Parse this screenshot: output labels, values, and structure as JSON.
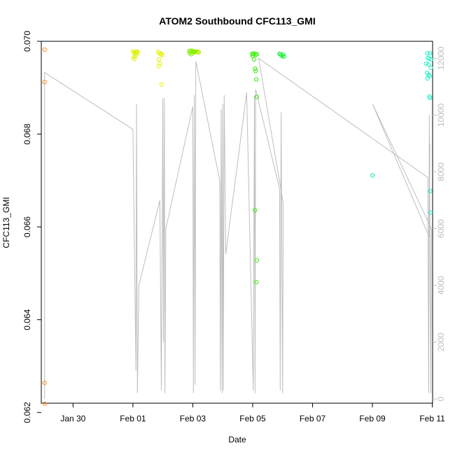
{
  "chart_data": {
    "type": "scatter",
    "title": "ATOM2 Southbound CFC113_GMI",
    "xlabel": "Date",
    "ylabel": "CFC113_GMI",
    "xlim": [
      -1.06,
      12.01
    ],
    "ylim": [
      0.0622,
      0.07
    ],
    "y2lim": [
      -150,
      12600
    ],
    "x_ticks": [
      {
        "v": 0,
        "label": "Jan 30"
      },
      {
        "v": 2,
        "label": "Feb 01"
      },
      {
        "v": 4,
        "label": "Feb 03"
      },
      {
        "v": 6,
        "label": "Feb 05"
      },
      {
        "v": 8,
        "label": "Feb 07"
      },
      {
        "v": 10,
        "label": "Feb 09"
      },
      {
        "v": 12,
        "label": "Feb 11"
      }
    ],
    "y_ticks": [
      0.062,
      0.064,
      0.066,
      0.068,
      0.07
    ],
    "y_tick_labels": [
      "0.062",
      "0.064",
      "0.066",
      "0.068",
      "0.070"
    ],
    "y2_ticks": [
      0,
      2000,
      4000,
      6000,
      8000,
      10000,
      12000
    ],
    "y2_tick_labels": [
      "0",
      "2000",
      "4000",
      "6000",
      "8000",
      "10000",
      "12000"
    ],
    "secondary_line_color": "#bebebe",
    "series": [
      {
        "color": "#ff8c1a",
        "points": [
          [
            -0.95,
            0.06982
          ],
          [
            -0.95,
            0.06912
          ],
          [
            -0.95,
            0.06264
          ],
          [
            -0.95,
            0.06219
          ]
        ]
      },
      {
        "color": "#ddf000",
        "points": [
          [
            2.0,
            0.06978
          ],
          [
            2.04,
            0.06976
          ],
          [
            2.07,
            0.06975
          ],
          [
            2.1,
            0.06977
          ],
          [
            2.13,
            0.06978
          ],
          [
            2.16,
            0.06977
          ],
          [
            2.02,
            0.06965
          ],
          [
            2.05,
            0.06962
          ],
          [
            2.08,
            0.06968
          ],
          [
            2.12,
            0.06972
          ]
        ]
      },
      {
        "color": "#e6f000",
        "points": [
          [
            2.85,
            0.06977
          ],
          [
            2.88,
            0.06975
          ],
          [
            2.92,
            0.06972
          ],
          [
            2.95,
            0.06973
          ],
          [
            2.98,
            0.0697
          ],
          [
            2.87,
            0.06961
          ],
          [
            2.9,
            0.06952
          ],
          [
            2.86,
            0.06946
          ],
          [
            2.96,
            0.06907
          ]
        ]
      },
      {
        "color": "#b6f000",
        "points": [
          [
            4.02,
            0.06978
          ],
          [
            4.06,
            0.06977
          ],
          [
            4.1,
            0.06978
          ],
          [
            4.14,
            0.06977
          ],
          [
            4.18,
            0.06978
          ],
          [
            4.0,
            0.06975
          ],
          [
            4.2,
            0.06976
          ]
        ]
      },
      {
        "color": "#7ef000",
        "points": [
          [
            3.88,
            0.06979
          ],
          [
            3.92,
            0.06978
          ],
          [
            3.96,
            0.0698
          ],
          [
            4.0,
            0.06978
          ],
          [
            4.04,
            0.06977
          ],
          [
            4.08,
            0.06978
          ],
          [
            3.9,
            0.06974
          ],
          [
            3.95,
            0.06972
          ]
        ]
      },
      {
        "color": "#30f000",
        "points": [
          [
            5.98,
            0.06973
          ],
          [
            6.02,
            0.06972
          ],
          [
            6.06,
            0.06974
          ],
          [
            6.1,
            0.06971
          ],
          [
            6.14,
            0.06972
          ],
          [
            6.0,
            0.06968
          ],
          [
            6.05,
            0.06961
          ],
          [
            6.08,
            0.06941
          ],
          [
            6.1,
            0.06936
          ],
          [
            6.12,
            0.06918
          ],
          [
            6.14,
            0.0688
          ],
          [
            6.08,
            0.06636
          ],
          [
            6.14,
            0.06528
          ],
          [
            6.12,
            0.06481
          ]
        ]
      },
      {
        "color": "#20f040",
        "points": [
          [
            6.9,
            0.06973
          ],
          [
            6.93,
            0.06972
          ],
          [
            6.96,
            0.0697
          ],
          [
            6.99,
            0.06968
          ],
          [
            7.02,
            0.06971
          ],
          [
            7.05,
            0.06967
          ]
        ]
      },
      {
        "color": "#00f090",
        "points": [
          [
            10.0,
            0.06711
          ]
        ]
      },
      {
        "color": "#1af0c8",
        "points": [
          [
            11.84,
            0.06974
          ],
          [
            11.92,
            0.06974
          ],
          [
            11.85,
            0.06964
          ],
          [
            11.9,
            0.06963
          ],
          [
            11.96,
            0.06961
          ],
          [
            11.8,
            0.06952
          ],
          [
            11.87,
            0.0695
          ],
          [
            11.95,
            0.06943
          ],
          [
            11.83,
            0.06932
          ],
          [
            11.88,
            0.06928
          ],
          [
            11.91,
            0.06925
          ],
          [
            11.84,
            0.0692
          ],
          [
            11.9,
            0.06881
          ],
          [
            11.92,
            0.06878
          ],
          [
            11.93,
            0.06677
          ],
          [
            11.94,
            0.06631
          ]
        ]
      }
    ],
    "secondary_series": {
      "points": [
        [
          -0.95,
          11500
        ],
        [
          -0.95,
          0
        ],
        [
          -0.95,
          11500
        ],
        [
          2.0,
          9500
        ],
        [
          2.1,
          1000
        ],
        [
          2.12,
          10400
        ],
        [
          2.15,
          200
        ],
        [
          2.2,
          4000
        ],
        [
          2.9,
          7000
        ],
        [
          2.95,
          300
        ],
        [
          3.0,
          10600
        ],
        [
          3.02,
          2000
        ],
        [
          3.05,
          10600
        ],
        [
          3.07,
          200
        ],
        [
          3.1,
          6000
        ],
        [
          4.0,
          10300
        ],
        [
          4.02,
          200
        ],
        [
          4.05,
          10700
        ],
        [
          4.08,
          500
        ],
        [
          4.1,
          11900
        ],
        [
          4.9,
          7700
        ],
        [
          4.92,
          300
        ],
        [
          4.95,
          10200
        ],
        [
          4.98,
          200
        ],
        [
          5.0,
          10400
        ],
        [
          5.02,
          300
        ],
        [
          5.05,
          10700
        ],
        [
          5.1,
          5100
        ],
        [
          5.8,
          10800
        ],
        [
          6.02,
          300
        ],
        [
          6.06,
          10700
        ],
        [
          6.08,
          200
        ],
        [
          6.1,
          10900
        ],
        [
          6.9,
          7400
        ],
        [
          6.92,
          300
        ],
        [
          6.95,
          10100
        ],
        [
          7.0,
          200
        ],
        [
          7.02,
          6900
        ],
        [
          6.2,
          12000
        ],
        [
          11.85,
          7800
        ],
        [
          11.88,
          200
        ],
        [
          11.9,
          10000
        ],
        [
          11.95,
          200
        ],
        [
          11.97,
          6000
        ],
        [
          10.0,
          10400
        ],
        [
          11.9,
          5700
        ],
        [
          11.92,
          9000
        ]
      ]
    }
  }
}
